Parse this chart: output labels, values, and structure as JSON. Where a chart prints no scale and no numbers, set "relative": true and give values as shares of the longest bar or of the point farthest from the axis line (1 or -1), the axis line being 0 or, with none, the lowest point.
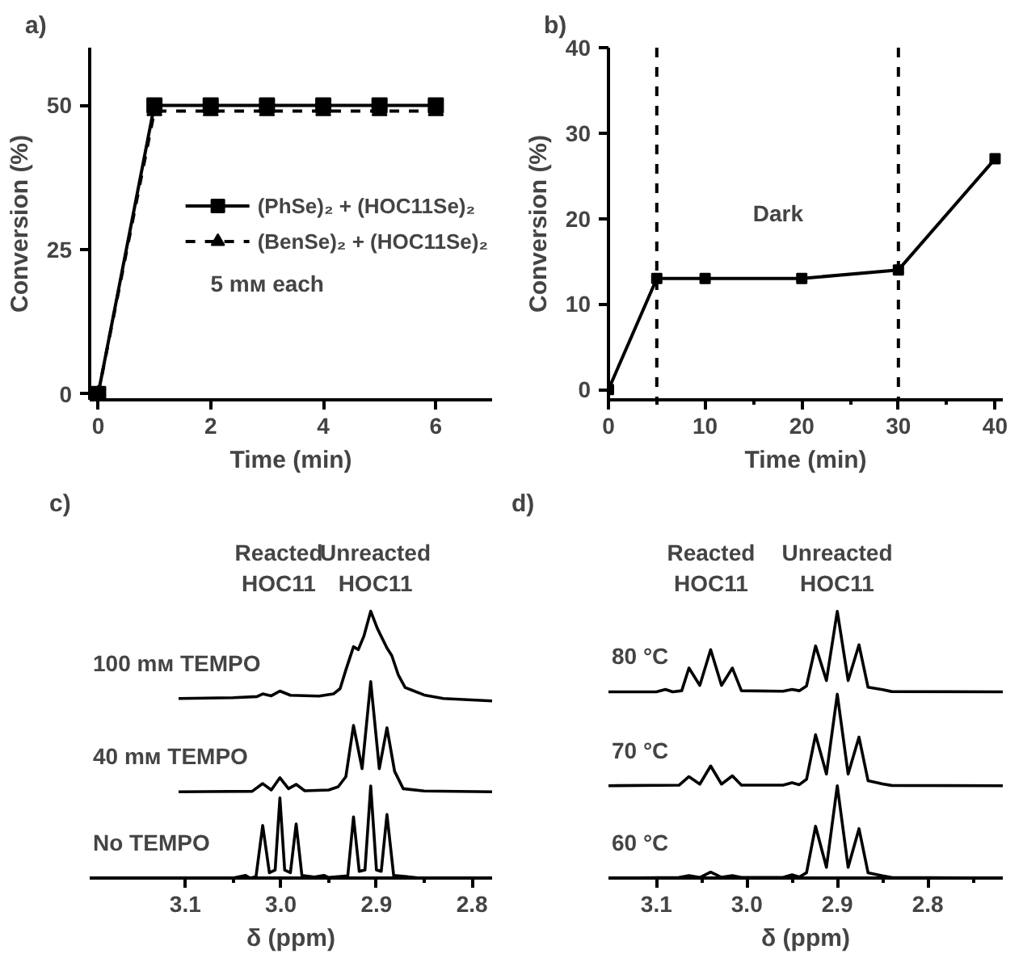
{
  "chart_data": [
    {
      "type": "line",
      "title": "a)",
      "xlabel": "Time (min)",
      "ylabel": "Conversion (%)",
      "x": [
        0,
        1,
        2,
        3,
        4,
        5,
        6
      ],
      "xlim": [
        -0.15,
        7
      ],
      "ylim": [
        -1,
        60
      ],
      "xticks": [
        0,
        2,
        4,
        6
      ],
      "yticks": [
        0,
        25,
        50
      ],
      "legend": "right",
      "annotations": [
        "5 mᴍ each"
      ],
      "series": [
        {
          "name": "(PhSe)₂ + (HOC11Se)₂",
          "color": "#000000",
          "values": [
            0,
            50,
            50,
            50,
            50,
            50,
            50
          ],
          "marker": "square",
          "line_style": "solid"
        },
        {
          "name": "(BenSe)₂ + (HOC11Se)₂",
          "color": "#000000",
          "values": [
            0,
            49,
            49,
            49,
            49,
            49,
            49
          ],
          "marker": "triangle",
          "line_style": "dashed"
        }
      ]
    },
    {
      "type": "line",
      "title": "b)",
      "xlabel": "Time (min)",
      "ylabel": "Conversion (%)",
      "x": [
        0,
        5,
        10,
        20,
        30,
        40
      ],
      "xlim": [
        0,
        40.8
      ],
      "ylim": [
        -1.2,
        40
      ],
      "xticks": [
        0,
        10,
        20,
        30,
        40,
        {
          "value": 5,
          "label": null
        },
        {
          "value": 15,
          "label": null
        },
        {
          "value": 25,
          "label": null
        },
        {
          "value": 35,
          "label": null
        }
      ],
      "yticks": [
        0,
        10,
        20,
        30,
        40
      ],
      "marker": "square",
      "ref_lines": [
        {
          "axis": "x",
          "value": 5,
          "line_style": "dashed"
        },
        {
          "axis": "x",
          "value": 30,
          "line_style": "dashed"
        }
      ],
      "annotations": [
        "Dark"
      ],
      "series": [
        {
          "color": "#000000",
          "values": [
            0,
            13,
            13,
            13,
            14,
            27
          ]
        }
      ]
    },
    {
      "type": "line",
      "title": "c)",
      "xlabel": "δ (ppm)",
      "relative": true,
      "xlim": [
        3.2,
        2.779
      ],
      "xticks": [
        {
          "value": 3.1,
          "label": "3.1"
        },
        {
          "value": 3.0,
          "label": "3.0"
        },
        {
          "value": 2.9,
          "label": "2.9"
        },
        {
          "value": 2.8,
          "label": "2.8"
        },
        {
          "value": 3.05,
          "label": null
        },
        {
          "value": 2.95,
          "label": null
        },
        {
          "value": 2.85,
          "label": null
        }
      ],
      "marker": "none",
      "annotations": [
        "Reacted\nHOC11",
        "Unreacted\nHOC11"
      ],
      "series": [
        {
          "name": "100 mᴍ  TEMPO",
          "color": "#000000",
          "x": [
            3.107,
            3.05,
            3.025,
            3.019,
            3.01,
            3.001,
            2.99,
            2.96,
            2.945,
            2.938,
            2.932,
            2.924,
            2.919,
            2.913,
            2.906,
            2.899,
            2.889,
            2.884,
            2.877,
            2.87,
            2.85,
            2.83,
            2.779
          ],
          "values": [
            0.673,
            0.676,
            0.68,
            0.69,
            0.683,
            0.701,
            0.685,
            0.682,
            0.69,
            0.71,
            0.78,
            0.867,
            0.856,
            0.908,
            1.0,
            0.935,
            0.862,
            0.834,
            0.76,
            0.714,
            0.686,
            0.673,
            0.664
          ]
        },
        {
          "name": "40 mᴍ  TEMPO",
          "color": "#000000",
          "x": [
            3.107,
            3.03,
            3.019,
            3.01,
            3.001,
            2.992,
            2.984,
            2.975,
            2.95,
            2.94,
            2.932,
            2.924,
            2.915,
            2.906,
            2.897,
            2.889,
            2.881,
            2.872,
            2.85,
            2.779
          ],
          "values": [
            0.323,
            0.325,
            0.354,
            0.33,
            0.376,
            0.335,
            0.351,
            0.327,
            0.33,
            0.342,
            0.38,
            0.572,
            0.41,
            0.736,
            0.41,
            0.563,
            0.4,
            0.335,
            0.326,
            0.323
          ]
        },
        {
          "name": "No TEMPO",
          "color": "#000000",
          "x": [
            3.107,
            3.05,
            3.037,
            3.032,
            3.026,
            3.019,
            3.012,
            3.006,
            3.001,
            2.996,
            2.99,
            2.984,
            2.978,
            2.965,
            2.955,
            2.95,
            2.93,
            2.924,
            2.918,
            2.912,
            2.906,
            2.9,
            2.895,
            2.889,
            2.882,
            2.87,
            2.855,
            2.779
          ],
          "values": [
            0,
            0,
            0.01,
            0,
            0.005,
            0.197,
            0.02,
            0.03,
            0.3,
            0.03,
            0.02,
            0.203,
            0.01,
            0.004,
            0.01,
            0.002,
            0.008,
            0.229,
            0.025,
            0.03,
            0.345,
            0.03,
            0.025,
            0.238,
            0.01,
            0.006,
            0,
            0
          ]
        }
      ]
    },
    {
      "type": "line",
      "title": "d)",
      "xlabel": "δ (ppm)",
      "relative": true,
      "xlim": [
        3.153,
        2.717
      ],
      "xticks": [
        {
          "value": 3.1,
          "label": "3.1"
        },
        {
          "value": 3.0,
          "label": "3.0"
        },
        {
          "value": 2.9,
          "label": "2.9"
        },
        {
          "value": 2.8,
          "label": "2.8"
        },
        {
          "value": 3.05,
          "label": null
        },
        {
          "value": 2.95,
          "label": null
        },
        {
          "value": 2.85,
          "label": null
        },
        {
          "value": 2.75,
          "label": null
        }
      ],
      "marker": "none",
      "annotations": [
        "Reacted\nHOC11",
        "Unreacted\nHOC11"
      ],
      "series": [
        {
          "name": "80 °C",
          "color": "#000000",
          "x": [
            3.153,
            3.1,
            3.09,
            3.082,
            3.072,
            3.064,
            3.052,
            3.04,
            3.028,
            3.016,
            3.006,
            2.96,
            2.95,
            2.942,
            2.934,
            2.924,
            2.912,
            2.9,
            2.888,
            2.876,
            2.866,
            2.85,
            2.84,
            2.717
          ],
          "values": [
            0.698,
            0.698,
            0.707,
            0.698,
            0.702,
            0.787,
            0.722,
            0.856,
            0.722,
            0.787,
            0.702,
            0.7,
            0.707,
            0.702,
            0.72,
            0.87,
            0.74,
            1.0,
            0.74,
            0.874,
            0.715,
            0.706,
            0.699,
            0.698
          ]
        },
        {
          "name": "70 °C",
          "color": "#000000",
          "x": [
            3.153,
            3.075,
            3.064,
            3.052,
            3.04,
            3.028,
            3.016,
            3.006,
            2.96,
            2.95,
            2.942,
            2.934,
            2.924,
            2.912,
            2.9,
            2.888,
            2.876,
            2.866,
            2.85,
            2.84,
            2.717
          ],
          "values": [
            0.346,
            0.348,
            0.38,
            0.352,
            0.42,
            0.352,
            0.383,
            0.348,
            0.348,
            0.357,
            0.35,
            0.37,
            0.537,
            0.39,
            0.689,
            0.39,
            0.528,
            0.365,
            0.353,
            0.347,
            0.346
          ]
        },
        {
          "name": "60 °C",
          "color": "#000000",
          "x": [
            3.153,
            3.075,
            3.064,
            3.052,
            3.04,
            3.028,
            3.016,
            3.006,
            2.96,
            2.95,
            2.942,
            2.934,
            2.924,
            2.912,
            2.9,
            2.888,
            2.876,
            2.866,
            2.85,
            2.84,
            2.717
          ],
          "values": [
            0,
            0.002,
            0.009,
            0.002,
            0.022,
            0.003,
            0.009,
            0.002,
            0.002,
            0.012,
            0.004,
            0.02,
            0.194,
            0.04,
            0.346,
            0.04,
            0.185,
            0.02,
            0.008,
            0.002,
            0
          ]
        }
      ]
    }
  ]
}
